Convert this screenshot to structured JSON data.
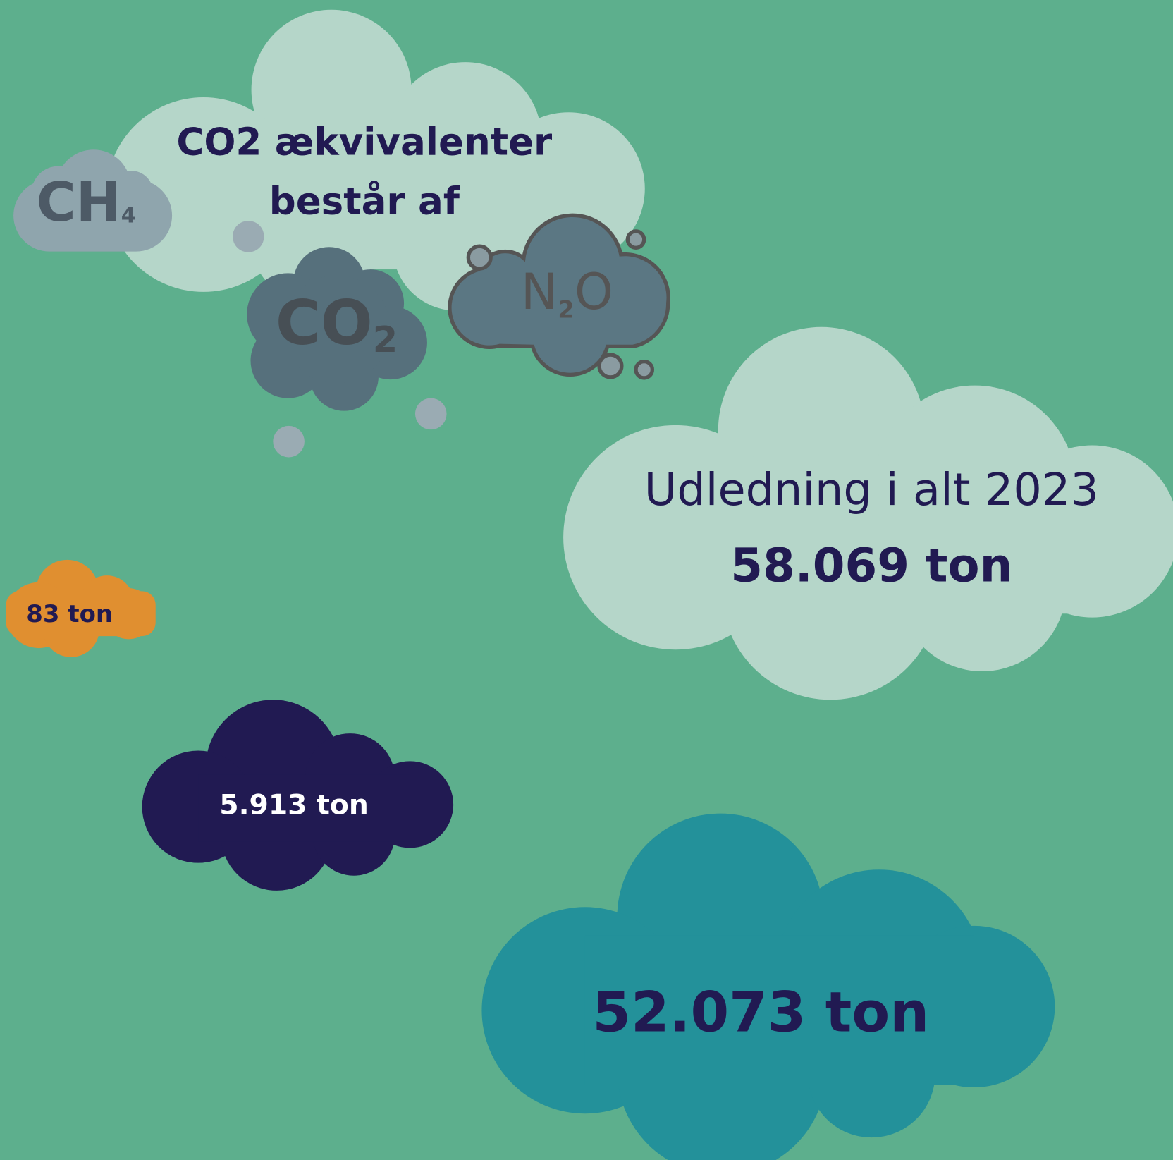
{
  "header": {
    "title_lines": [
      "CO2 ækvivalenter",
      "består af"
    ]
  },
  "icons": [
    {
      "base": "CH",
      "sub": "4"
    },
    {
      "base": "CO",
      "sub": "2"
    },
    {
      "base": "N",
      "sub": "2",
      "tail": "O"
    }
  ],
  "total": {
    "label": "Udledning i alt 2023",
    "value": "58.069 ton"
  },
  "parts": [
    "83 ton",
    "5.913 ton",
    "52.073 ton"
  ]
}
